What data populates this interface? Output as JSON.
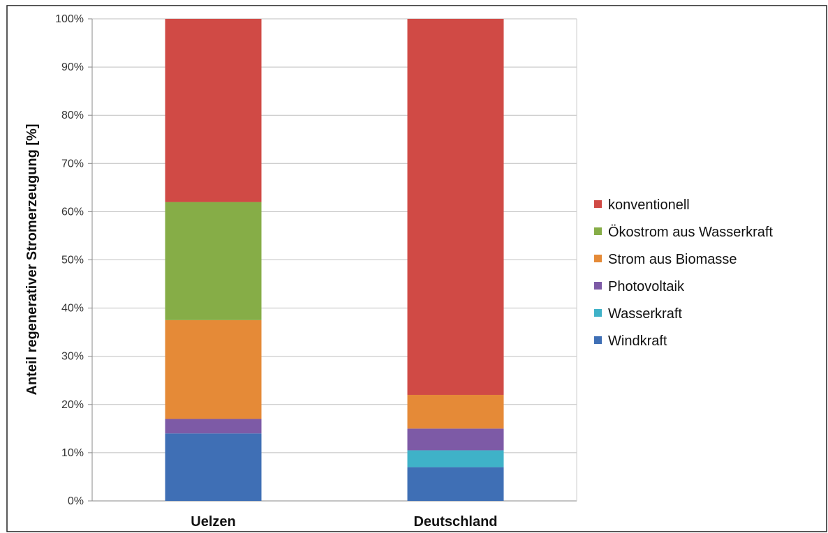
{
  "chart_data": {
    "type": "bar",
    "stacked": true,
    "categories": [
      "Uelzen",
      "Deutschland"
    ],
    "series": [
      {
        "name": "Windkraft",
        "values": [
          14,
          7
        ],
        "color": "#3f6fb5"
      },
      {
        "name": "Wasserkraft",
        "values": [
          0,
          3.5
        ],
        "color": "#3fb2c8"
      },
      {
        "name": "Photovoltaik",
        "values": [
          3,
          4.5
        ],
        "color": "#7d5aa6"
      },
      {
        "name": "Strom aus Biomasse",
        "values": [
          20.5,
          7
        ],
        "color": "#e58a37"
      },
      {
        "name": "Ökostrom aus Wasserkraft",
        "values": [
          24.5,
          0
        ],
        "color": "#86ad47"
      },
      {
        "name": "konventionell",
        "values": [
          38,
          78
        ],
        "color": "#d04a45"
      }
    ],
    "ylabel": "Anteil regenerativer Stromerzeugung [%]",
    "xlabel": "",
    "ylim": [
      0,
      100
    ],
    "yticks": [
      "0%",
      "10%",
      "20%",
      "30%",
      "40%",
      "50%",
      "60%",
      "70%",
      "80%",
      "90%",
      "100%"
    ],
    "grid": true,
    "legend": "right",
    "legend_order": [
      "konventionell",
      "Ökostrom aus Wasserkraft",
      "Strom aus Biomasse",
      "Photovoltaik",
      "Wasserkraft",
      "Windkraft"
    ]
  }
}
